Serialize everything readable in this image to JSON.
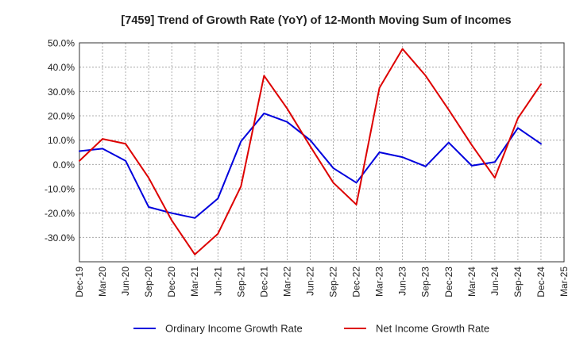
{
  "chart_data": {
    "type": "line",
    "title": "[7459]  Trend of Growth Rate (YoY) of 12-Month Moving Sum of Incomes",
    "xlabel": "",
    "ylabel": "",
    "x": [
      "Dec-19",
      "Mar-20",
      "Jun-20",
      "Sep-20",
      "Dec-20",
      "Mar-21",
      "Jun-21",
      "Sep-21",
      "Dec-21",
      "Mar-22",
      "Jun-22",
      "Sep-22",
      "Dec-22",
      "Mar-23",
      "Jun-23",
      "Sep-23",
      "Dec-23",
      "Mar-24",
      "Jun-24",
      "Sep-24",
      "Dec-24",
      "Mar-25"
    ],
    "ylim": [
      -40,
      50
    ],
    "yticks": [
      50,
      40,
      30,
      20,
      10,
      0,
      -10,
      -20,
      -30
    ],
    "ytick_labels": [
      "50.0%",
      "40.0%",
      "30.0%",
      "20.0%",
      "10.0%",
      "0.0%",
      "-10.0%",
      "-20.0%",
      "-30.0%"
    ],
    "grid": true,
    "legend_position": "bottom",
    "series": [
      {
        "name": "Ordinary Income Growth Rate",
        "color": "#0000dd",
        "values": [
          5.5,
          6.5,
          1.5,
          -17.5,
          -20,
          -22,
          -14,
          9.5,
          21,
          17.5,
          10,
          -1.5,
          -7.5,
          5,
          3,
          -0.8,
          9,
          -0.5,
          1,
          15,
          8.5,
          null
        ]
      },
      {
        "name": "Net Income Growth Rate",
        "color": "#dd0000",
        "values": [
          1.5,
          10.5,
          8.5,
          -5.5,
          -23,
          -37,
          -28.5,
          -9,
          36.5,
          23,
          7.5,
          -7.5,
          -16.5,
          31.5,
          47.5,
          36.5,
          22.5,
          8,
          -5.5,
          19,
          33,
          null
        ]
      }
    ]
  }
}
